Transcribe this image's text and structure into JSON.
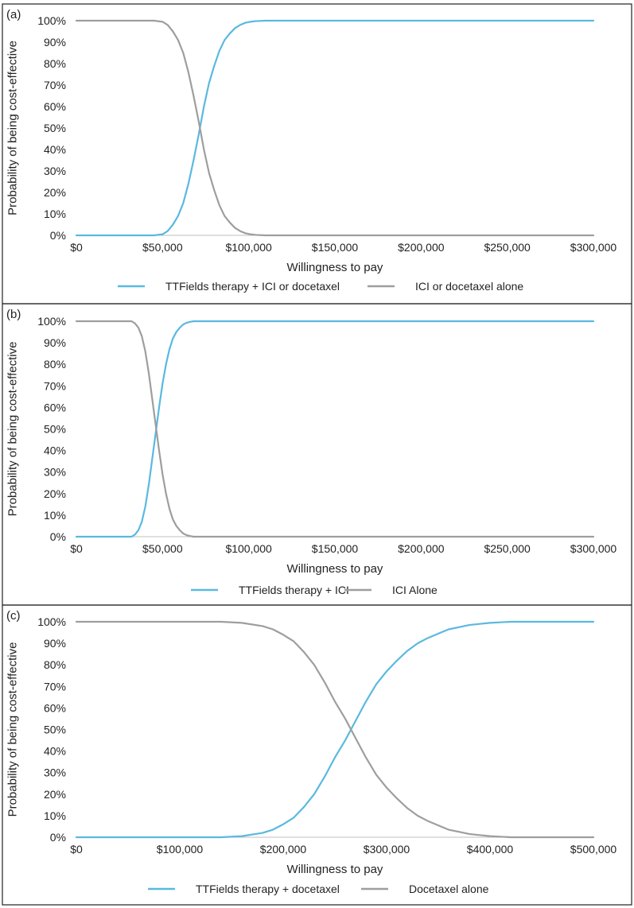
{
  "colors": {
    "blue": "#5ab9e0",
    "gray": "#9e9e9e"
  },
  "chart_data": [
    {
      "type": "line",
      "panel_label": "(a)",
      "xlabel": "Willingness to pay",
      "ylabel": "Probability of being cost-effective",
      "xlim": [
        0,
        300000
      ],
      "ylim": [
        0,
        100
      ],
      "x_ticks": [
        0,
        50000,
        100000,
        150000,
        200000,
        250000,
        300000
      ],
      "x_tick_labels": [
        "$0",
        "$50,000",
        "$100,000",
        "$150,000",
        "$200,000",
        "$250,000",
        "$300,000"
      ],
      "y_ticks": [
        0,
        10,
        20,
        30,
        40,
        50,
        60,
        70,
        80,
        90,
        100
      ],
      "y_tick_labels": [
        "0%",
        "10%",
        "20%",
        "30%",
        "40%",
        "50%",
        "60%",
        "70%",
        "80%",
        "90%",
        "100%"
      ],
      "grid": false,
      "legend_position": "bottom",
      "series": [
        {
          "name": "TTFields therapy + ICI or docetaxel",
          "color": "#5ab9e0",
          "x": [
            0,
            45000,
            50000,
            53000,
            56000,
            59000,
            62000,
            65000,
            68000,
            71000,
            74000,
            77000,
            80000,
            83000,
            86000,
            89000,
            92000,
            95000,
            98000,
            101000,
            104000,
            110000,
            120000,
            300000
          ],
          "y": [
            0,
            0,
            0.5,
            2,
            5,
            9,
            15,
            24,
            35,
            47,
            60,
            71,
            79,
            86,
            91,
            94,
            96.5,
            98,
            99,
            99.5,
            99.8,
            100,
            100,
            100
          ]
        },
        {
          "name": "ICI or docetaxel alone",
          "color": "#9e9e9e",
          "x": [
            0,
            45000,
            50000,
            53000,
            56000,
            59000,
            62000,
            65000,
            68000,
            71000,
            74000,
            77000,
            80000,
            83000,
            86000,
            89000,
            92000,
            95000,
            98000,
            101000,
            104000,
            110000,
            120000,
            300000
          ],
          "y": [
            100,
            100,
            99.5,
            98,
            95,
            91,
            85,
            76,
            65,
            53,
            40,
            29,
            21,
            14,
            9,
            6,
            3.5,
            2,
            1,
            0.5,
            0.2,
            0,
            0,
            0
          ]
        }
      ]
    },
    {
      "type": "line",
      "panel_label": "(b)",
      "xlabel": "Willingness to pay",
      "ylabel": "Probability of being cost-effective",
      "xlim": [
        0,
        300000
      ],
      "ylim": [
        0,
        100
      ],
      "x_ticks": [
        0,
        50000,
        100000,
        150000,
        200000,
        250000,
        300000
      ],
      "x_tick_labels": [
        "$0",
        "$50,000",
        "$100,000",
        "$150,000",
        "$200,000",
        "$250,000",
        "$300,000"
      ],
      "y_ticks": [
        0,
        10,
        20,
        30,
        40,
        50,
        60,
        70,
        80,
        90,
        100
      ],
      "y_tick_labels": [
        "0%",
        "10%",
        "20%",
        "30%",
        "40%",
        "50%",
        "60%",
        "70%",
        "80%",
        "90%",
        "100%"
      ],
      "grid": false,
      "legend_position": "bottom",
      "series": [
        {
          "name": "TTFields therapy + ICI",
          "color": "#5ab9e0",
          "x": [
            0,
            32000,
            34000,
            36000,
            38000,
            40000,
            42000,
            44000,
            46000,
            48000,
            50000,
            52000,
            54000,
            56000,
            58000,
            60000,
            62000,
            64000,
            66000,
            68000,
            70000,
            75000,
            300000
          ],
          "y": [
            0,
            0,
            1,
            3,
            7,
            14,
            24,
            36,
            48,
            60,
            71,
            80,
            87,
            92,
            95,
            97,
            98.5,
            99.3,
            99.7,
            100,
            100,
            100,
            100
          ]
        },
        {
          "name": "ICI Alone",
          "color": "#9e9e9e",
          "x": [
            0,
            32000,
            34000,
            36000,
            38000,
            40000,
            42000,
            44000,
            46000,
            48000,
            50000,
            52000,
            54000,
            56000,
            58000,
            60000,
            62000,
            64000,
            66000,
            68000,
            70000,
            75000,
            300000
          ],
          "y": [
            100,
            100,
            99,
            97,
            93,
            86,
            76,
            64,
            52,
            40,
            29,
            20,
            13,
            8,
            5,
            3,
            1.5,
            0.7,
            0.3,
            0,
            0,
            0,
            0
          ]
        }
      ]
    },
    {
      "type": "line",
      "panel_label": "(c)",
      "xlabel": "Willingness to pay",
      "ylabel": "Probability of being cost-effective",
      "xlim": [
        0,
        500000
      ],
      "ylim": [
        0,
        100
      ],
      "x_ticks": [
        0,
        100000,
        200000,
        300000,
        400000,
        500000
      ],
      "x_tick_labels": [
        "$0",
        "$100,000",
        "$200,000",
        "$300,000",
        "$400,000",
        "$500,000"
      ],
      "y_ticks": [
        0,
        10,
        20,
        30,
        40,
        50,
        60,
        70,
        80,
        90,
        100
      ],
      "y_tick_labels": [
        "0%",
        "10%",
        "20%",
        "30%",
        "40%",
        "50%",
        "60%",
        "70%",
        "80%",
        "90%",
        "100%"
      ],
      "grid": false,
      "legend_position": "bottom",
      "series": [
        {
          "name": "TTFields therapy + docetaxel",
          "color": "#5ab9e0",
          "x": [
            0,
            140000,
            160000,
            180000,
            190000,
            200000,
            210000,
            220000,
            230000,
            240000,
            250000,
            260000,
            270000,
            280000,
            290000,
            300000,
            310000,
            320000,
            330000,
            340000,
            350000,
            360000,
            370000,
            380000,
            390000,
            400000,
            420000,
            440000,
            500000
          ],
          "y": [
            0,
            0,
            0.5,
            2,
            3.5,
            6,
            9,
            14,
            20,
            28,
            37,
            45,
            54,
            63,
            71,
            77,
            82,
            86.5,
            90,
            92.5,
            94.5,
            96.5,
            97.5,
            98.5,
            99,
            99.5,
            100,
            100,
            100
          ]
        },
        {
          "name": "Docetaxel alone",
          "color": "#9e9e9e",
          "x": [
            0,
            140000,
            160000,
            180000,
            190000,
            200000,
            210000,
            220000,
            230000,
            240000,
            250000,
            260000,
            270000,
            280000,
            290000,
            300000,
            310000,
            320000,
            330000,
            340000,
            350000,
            360000,
            370000,
            380000,
            390000,
            400000,
            420000,
            440000,
            500000
          ],
          "y": [
            100,
            100,
            99.5,
            98,
            96.5,
            94,
            91,
            86,
            80,
            72,
            63,
            55,
            46,
            37,
            29,
            23,
            18,
            13.5,
            10,
            7.5,
            5.5,
            3.5,
            2.5,
            1.5,
            1,
            0.5,
            0,
            0,
            0
          ]
        }
      ]
    }
  ]
}
